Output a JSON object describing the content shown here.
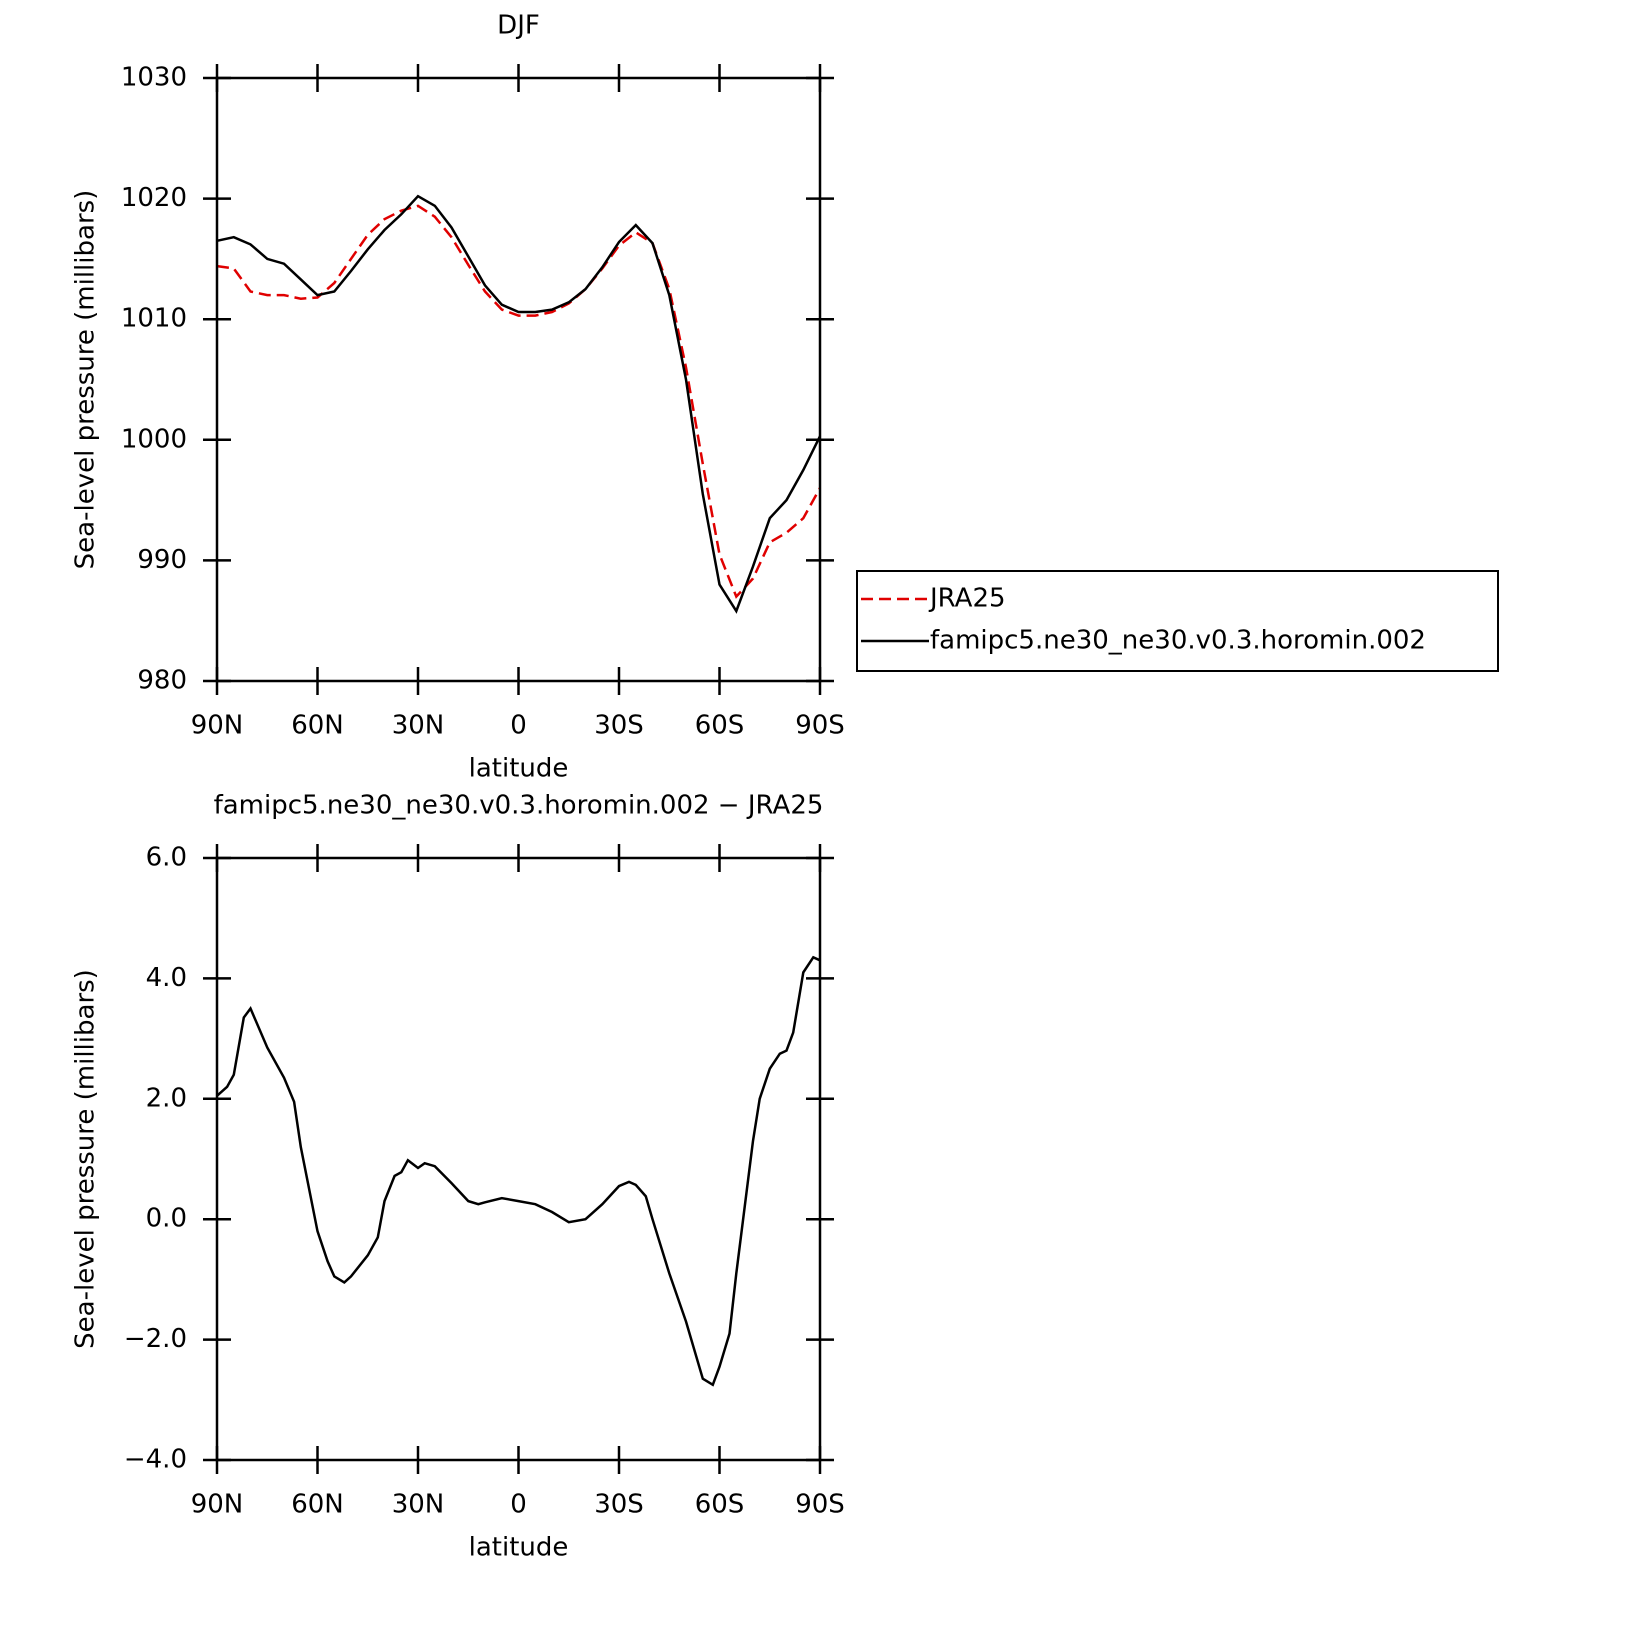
{
  "chart_data": [
    {
      "type": "line",
      "title": "DJF",
      "xlabel": "latitude",
      "ylabel": "Sea-level pressure (millibars)",
      "x": [
        90,
        85,
        80,
        75,
        70,
        65,
        60,
        55,
        50,
        45,
        40,
        35,
        30,
        25,
        20,
        15,
        10,
        5,
        0,
        -5,
        -10,
        -15,
        -20,
        -25,
        -30,
        -35,
        -40,
        -45,
        -50,
        -55,
        -60,
        -65,
        -70,
        -75,
        -80,
        -85,
        -90
      ],
      "series": [
        {
          "name": "JRA25",
          "color": "#e00000",
          "dash": "dashed",
          "values": [
            1014.4,
            1014.2,
            1012.3,
            1012.0,
            1012.0,
            1011.7,
            1011.8,
            1013.0,
            1015.0,
            1017.0,
            1018.3,
            1019.0,
            1019.4,
            1018.5,
            1016.8,
            1014.5,
            1012.3,
            1010.8,
            1010.3,
            1010.3,
            1010.6,
            1011.3,
            1012.5,
            1014.2,
            1016.1,
            1017.2,
            1016.3,
            1012.5,
            1006.0,
            998.0,
            990.5,
            987.0,
            988.5,
            991.5,
            992.3,
            993.5,
            996.0
          ]
        },
        {
          "name": "famipc5.ne30_ne30.v0.3.horomin.002",
          "color": "#000000",
          "dash": "solid",
          "values": [
            1016.5,
            1016.8,
            1016.2,
            1015.0,
            1014.6,
            1013.3,
            1012.0,
            1012.3,
            1014.0,
            1015.8,
            1017.4,
            1018.7,
            1020.2,
            1019.4,
            1017.6,
            1015.2,
            1012.8,
            1011.2,
            1010.6,
            1010.6,
            1010.8,
            1011.4,
            1012.5,
            1014.3,
            1016.4,
            1017.8,
            1016.3,
            1012.0,
            1005.0,
            995.5,
            988.0,
            985.8,
            989.5,
            993.5,
            995.0,
            997.5,
            1000.3
          ]
        }
      ],
      "xlim": [
        90,
        -90
      ],
      "xticks": [
        {
          "value": 90,
          "label": "90N"
        },
        {
          "value": 60,
          "label": "60N"
        },
        {
          "value": 30,
          "label": "30N"
        },
        0,
        {
          "value": -30,
          "label": "30S"
        },
        {
          "value": -60,
          "label": "60S"
        },
        {
          "value": -90,
          "label": "90S"
        }
      ],
      "ylim": [
        980,
        1030
      ],
      "yticks": [
        980,
        990,
        1000,
        1010,
        1020,
        1030
      ],
      "legend": "right"
    },
    {
      "type": "line",
      "title": "famipc5.ne30_ne30.v0.3.horomin.002 − JRA25",
      "xlabel": "latitude",
      "ylabel": "Sea-level pressure (millibars)",
      "x": [
        90,
        87,
        85,
        82,
        80,
        75,
        70,
        67,
        65,
        60,
        57,
        55,
        52,
        50,
        45,
        42,
        40,
        37,
        35,
        33,
        30,
        28,
        25,
        20,
        15,
        12,
        10,
        5,
        0,
        -5,
        -10,
        -15,
        -20,
        -25,
        -30,
        -33,
        -35,
        -38,
        -40,
        -45,
        -50,
        -55,
        -58,
        -60,
        -63,
        -65,
        -70,
        -72,
        -75,
        -78,
        -80,
        -82,
        -85,
        -88,
        -90
      ],
      "color": "#000000",
      "values": [
        2.05,
        2.2,
        2.4,
        3.35,
        3.5,
        2.85,
        2.35,
        1.95,
        1.2,
        -0.2,
        -0.7,
        -0.95,
        -1.05,
        -0.95,
        -0.6,
        -0.3,
        0.3,
        0.72,
        0.78,
        0.98,
        0.85,
        0.93,
        0.88,
        0.6,
        0.3,
        0.25,
        0.28,
        0.35,
        0.3,
        0.25,
        0.12,
        -0.05,
        0.0,
        0.25,
        0.55,
        0.62,
        0.57,
        0.38,
        0.0,
        -0.9,
        -1.7,
        -2.65,
        -2.75,
        -2.45,
        -1.9,
        -0.9,
        1.3,
        2.0,
        2.5,
        2.75,
        2.8,
        3.1,
        4.1,
        4.35,
        4.3
      ],
      "xlim": [
        90,
        -90
      ],
      "xticks": [
        {
          "value": 90,
          "label": "90N"
        },
        {
          "value": 60,
          "label": "60N"
        },
        {
          "value": 30,
          "label": "30N"
        },
        0,
        {
          "value": -30,
          "label": "30S"
        },
        {
          "value": -60,
          "label": "60S"
        },
        {
          "value": -90,
          "label": "90S"
        }
      ],
      "ylim": [
        -4,
        6
      ],
      "yticks": [
        {
          "value": -4,
          "label": "−4.0"
        },
        {
          "value": -2,
          "label": "−2.0"
        },
        {
          "value": 0,
          "label": "0.0"
        },
        {
          "value": 2,
          "label": "2.0"
        },
        {
          "value": 4,
          "label": "4.0"
        },
        {
          "value": 6,
          "label": "6.0"
        }
      ]
    }
  ]
}
